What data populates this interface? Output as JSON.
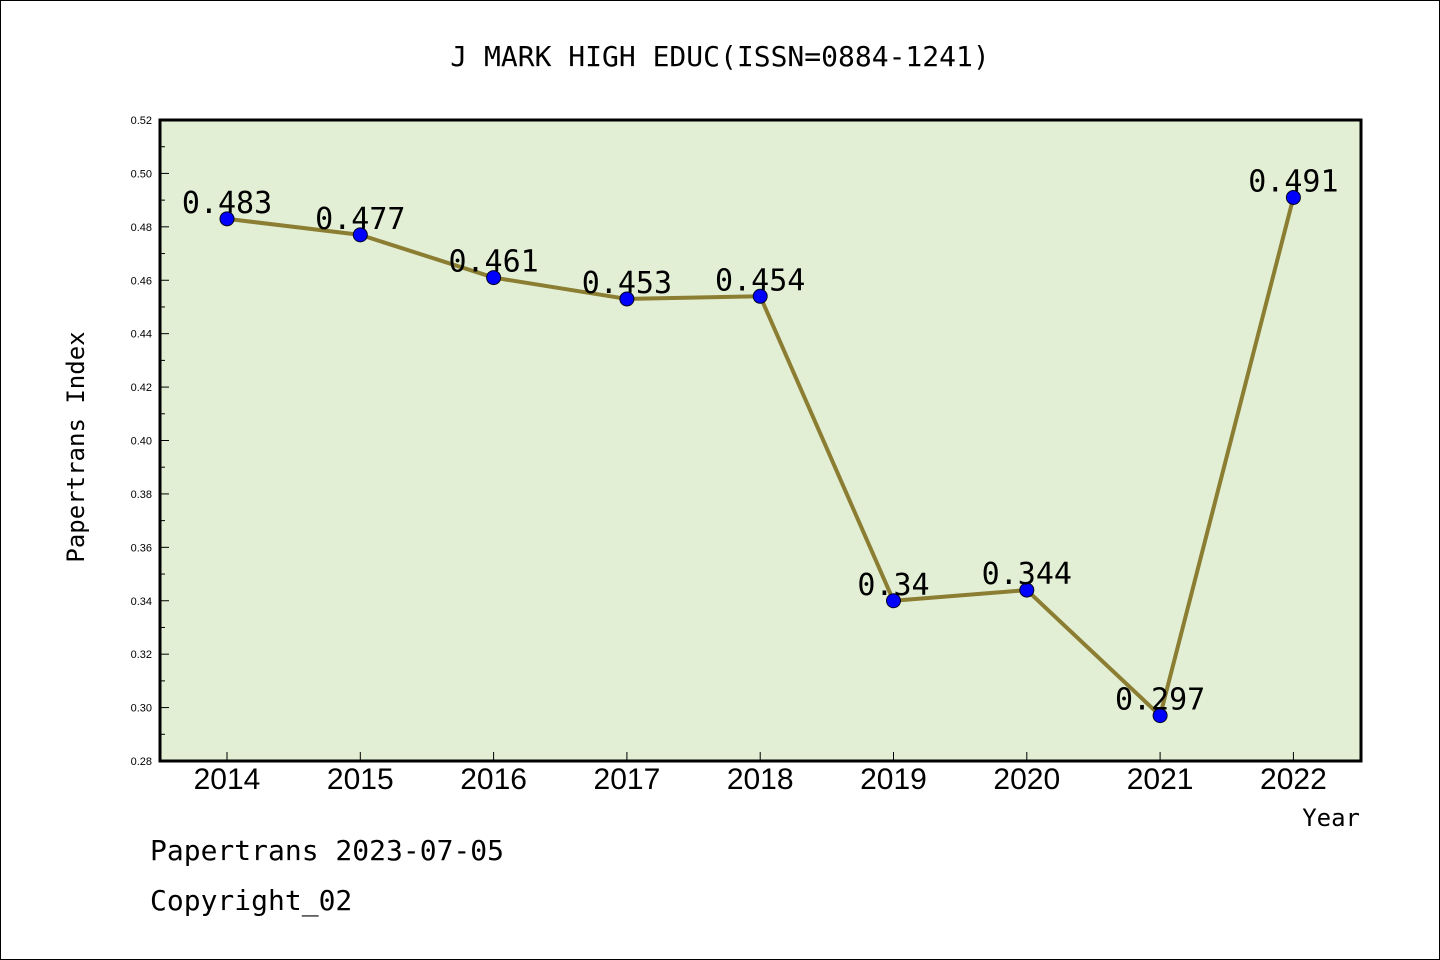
{
  "chart_data": {
    "type": "line",
    "title": "J MARK HIGH EDUC(ISSN=0884-1241)",
    "xlabel": "Year",
    "ylabel": "Papertrans Index",
    "categories": [
      "2014",
      "2015",
      "2016",
      "2017",
      "2018",
      "2019",
      "2020",
      "2021",
      "2022"
    ],
    "series": [
      {
        "values": [
          0.483,
          0.477,
          0.461,
          0.453,
          0.454,
          0.34,
          0.344,
          0.297,
          0.491
        ],
        "data_labels": [
          "0.483",
          "0.477",
          "0.461",
          "0.453",
          "0.454",
          "0.34",
          "0.344",
          "0.297",
          "0.491"
        ]
      }
    ],
    "ylim": [
      0.28,
      0.52
    ],
    "yticks": [
      "0.28",
      "0.30",
      "0.32",
      "0.34",
      "0.36",
      "0.38",
      "0.40",
      "0.42",
      "0.44",
      "0.46",
      "0.48",
      "0.50",
      "0.52"
    ],
    "grid": false,
    "legend": "none",
    "colors": {
      "line": "#8B7D32",
      "marker": "#0000FF",
      "plot_background": "#E2EFD4"
    }
  },
  "footer": {
    "date_line": "Papertrans 2023-07-05",
    "copyright": "Copyright_02"
  }
}
